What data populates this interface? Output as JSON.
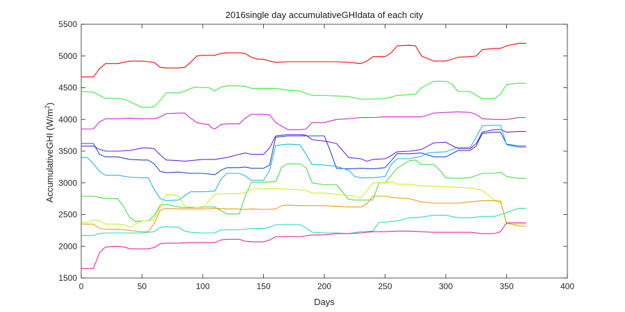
{
  "chart_data": {
    "type": "line",
    "title": "2016single day accumulativeGHIdata of each city",
    "xlabel": "Days",
    "ylabel": "AccumulativeGHI (W/m",
    "ylabel_superscript": "2",
    "ylabel_suffix": ")",
    "xlim": [
      0,
      400
    ],
    "ylim": [
      1500,
      5500
    ],
    "xticks": [
      0,
      50,
      100,
      150,
      200,
      250,
      300,
      350,
      400
    ],
    "yticks": [
      1500,
      2000,
      2500,
      3000,
      3500,
      4000,
      4500,
      5000,
      5500
    ],
    "grid": false,
    "legend": "none",
    "series": [
      {
        "color": "#ff0000",
        "x": [
          0,
          10,
          15,
          20,
          30,
          35,
          40,
          50,
          55,
          60,
          65,
          70,
          80,
          85,
          90,
          95,
          100,
          110,
          115,
          120,
          130,
          135,
          140,
          145,
          150,
          155,
          160,
          170,
          180,
          190,
          200,
          210,
          220,
          225,
          230,
          235,
          240,
          250,
          255,
          260,
          270,
          275,
          280,
          290,
          295,
          300,
          310,
          320,
          325,
          330,
          340,
          345,
          350,
          360,
          366
        ],
        "y": [
          4670,
          4670,
          4800,
          4880,
          4880,
          4900,
          4920,
          4920,
          4910,
          4900,
          4820,
          4810,
          4810,
          4820,
          4900,
          5000,
          5010,
          5010,
          5040,
          5050,
          5050,
          5040,
          4980,
          4950,
          4950,
          4920,
          4900,
          4910,
          4910,
          4910,
          4910,
          4910,
          4900,
          4890,
          4880,
          4920,
          4990,
          4990,
          5050,
          5160,
          5170,
          5160,
          5000,
          4920,
          4920,
          4920,
          4980,
          4990,
          5000,
          5100,
          5120,
          5120,
          5160,
          5200,
          5200
        ]
      },
      {
        "color": "#33ee33",
        "x": [
          0,
          10,
          15,
          20,
          30,
          35,
          40,
          50,
          55,
          60,
          65,
          70,
          80,
          85,
          90,
          95,
          100,
          105,
          110,
          115,
          120,
          130,
          135,
          140,
          150,
          160,
          170,
          180,
          185,
          190,
          200,
          210,
          220,
          225,
          230,
          240,
          250,
          255,
          260,
          270,
          275,
          280,
          290,
          295,
          300,
          305,
          310,
          320,
          325,
          330,
          340,
          345,
          350,
          360,
          366
        ],
        "y": [
          4440,
          4430,
          4380,
          4330,
          4330,
          4320,
          4280,
          4190,
          4190,
          4200,
          4300,
          4420,
          4420,
          4440,
          4490,
          4510,
          4500,
          4500,
          4450,
          4510,
          4530,
          4530,
          4520,
          4490,
          4490,
          4490,
          4460,
          4450,
          4410,
          4380,
          4380,
          4370,
          4360,
          4340,
          4320,
          4320,
          4330,
          4350,
          4380,
          4390,
          4400,
          4500,
          4600,
          4600,
          4600,
          4560,
          4440,
          4440,
          4380,
          4330,
          4330,
          4400,
          4550,
          4570,
          4570
        ]
      },
      {
        "color": "#cc22dd",
        "x": [
          0,
          10,
          15,
          20,
          30,
          40,
          50,
          55,
          60,
          65,
          70,
          80,
          85,
          90,
          95,
          100,
          105,
          107,
          110,
          115,
          120,
          130,
          135,
          140,
          150,
          155,
          160,
          170,
          180,
          185,
          190,
          200,
          210,
          220,
          230,
          240,
          250,
          260,
          270,
          280,
          290,
          300,
          310,
          320,
          325,
          330,
          340,
          350,
          360,
          366
        ],
        "y": [
          3850,
          3850,
          3960,
          4010,
          4010,
          4020,
          4010,
          4010,
          4010,
          4040,
          4090,
          4100,
          4100,
          4020,
          3950,
          3930,
          3920,
          3870,
          3850,
          3920,
          3930,
          3930,
          4020,
          4080,
          4080,
          4070,
          3950,
          3840,
          3840,
          3850,
          3950,
          3950,
          4000,
          4010,
          4030,
          4030,
          4040,
          4040,
          4040,
          4040,
          4100,
          4110,
          4120,
          4110,
          4080,
          4010,
          4000,
          4000,
          4030,
          4030
        ]
      },
      {
        "color": "#6622dd",
        "x": [
          0,
          10,
          15,
          20,
          30,
          40,
          50,
          55,
          60,
          65,
          70,
          80,
          85,
          90,
          100,
          110,
          120,
          130,
          135,
          140,
          150,
          155,
          160,
          170,
          180,
          185,
          190,
          200,
          210,
          220,
          230,
          235,
          240,
          250,
          255,
          260,
          270,
          275,
          280,
          290,
          300,
          310,
          320,
          325,
          330,
          340,
          345,
          350,
          360,
          366
        ],
        "y": [
          3580,
          3580,
          3530,
          3500,
          3500,
          3510,
          3550,
          3550,
          3540,
          3440,
          3360,
          3350,
          3340,
          3350,
          3370,
          3370,
          3400,
          3450,
          3470,
          3450,
          3450,
          3550,
          3740,
          3760,
          3760,
          3750,
          3680,
          3660,
          3620,
          3400,
          3380,
          3340,
          3370,
          3380,
          3430,
          3490,
          3500,
          3510,
          3530,
          3630,
          3640,
          3540,
          3540,
          3620,
          3800,
          3840,
          3840,
          3800,
          3810,
          3810
        ]
      },
      {
        "color": "#1f44cc",
        "x": [
          0,
          10,
          15,
          20,
          30,
          40,
          50,
          55,
          60,
          65,
          70,
          80,
          90,
          100,
          110,
          115,
          120,
          130,
          135,
          140,
          150,
          155,
          160,
          170,
          180,
          190,
          200,
          205,
          210,
          220,
          230,
          240,
          250,
          255,
          260,
          270,
          280,
          290,
          300,
          310,
          320,
          325,
          330,
          340,
          345,
          350,
          360,
          366
        ],
        "y": [
          3620,
          3620,
          3450,
          3410,
          3410,
          3370,
          3360,
          3360,
          3300,
          3180,
          3160,
          3170,
          3150,
          3150,
          3130,
          3200,
          3240,
          3240,
          3250,
          3230,
          3230,
          3280,
          3720,
          3740,
          3740,
          3740,
          3740,
          3500,
          3230,
          3220,
          3230,
          3220,
          3240,
          3350,
          3460,
          3460,
          3470,
          3410,
          3410,
          3510,
          3510,
          3580,
          3780,
          3800,
          3800,
          3610,
          3580,
          3580
        ]
      },
      {
        "color": "#11bbee",
        "x": [
          0,
          5,
          10,
          15,
          20,
          30,
          40,
          50,
          55,
          60,
          65,
          70,
          80,
          90,
          95,
          100,
          110,
          115,
          120,
          130,
          135,
          140,
          150,
          155,
          160,
          170,
          180,
          185,
          190,
          200,
          210,
          220,
          225,
          230,
          240,
          250,
          255,
          260,
          270,
          280,
          285,
          290,
          300,
          310,
          320,
          325,
          330,
          340,
          345,
          350,
          360,
          366
        ],
        "y": [
          3400,
          3400,
          3300,
          3180,
          3120,
          3120,
          3090,
          3080,
          3080,
          2900,
          2750,
          2720,
          2730,
          2860,
          2860,
          2860,
          2870,
          3060,
          3150,
          3150,
          3110,
          3040,
          3040,
          3200,
          3590,
          3610,
          3600,
          3450,
          3290,
          3280,
          3260,
          3200,
          3100,
          3080,
          3080,
          3100,
          3290,
          3380,
          3380,
          3420,
          3470,
          3480,
          3490,
          3560,
          3560,
          3720,
          3900,
          3910,
          3910,
          3600,
          3560,
          3560
        ]
      },
      {
        "color": "#44dd44",
        "x": [
          0,
          10,
          15,
          20,
          30,
          35,
          40,
          45,
          50,
          55,
          60,
          65,
          70,
          80,
          85,
          90,
          100,
          110,
          115,
          120,
          130,
          135,
          140,
          150,
          160,
          165,
          170,
          180,
          185,
          190,
          200,
          210,
          220,
          225,
          230,
          240,
          245,
          250,
          260,
          270,
          275,
          280,
          290,
          295,
          300,
          310,
          320,
          330,
          340,
          345,
          350,
          360,
          366
        ],
        "y": [
          2790,
          2790,
          2770,
          2750,
          2750,
          2620,
          2450,
          2390,
          2400,
          2400,
          2480,
          2650,
          2660,
          2620,
          2610,
          2610,
          2620,
          2620,
          2560,
          2510,
          2510,
          2800,
          3010,
          3010,
          3020,
          3250,
          3300,
          3300,
          3240,
          3000,
          2970,
          2970,
          2740,
          2730,
          2730,
          2730,
          3000,
          3000,
          3230,
          3350,
          3360,
          3290,
          3290,
          3200,
          3080,
          3070,
          3080,
          3150,
          3150,
          3170,
          3100,
          3070,
          3070
        ]
      },
      {
        "color": "#ccee22",
        "x": [
          0,
          5,
          10,
          15,
          20,
          30,
          35,
          40,
          50,
          55,
          60,
          65,
          70,
          80,
          85,
          90,
          100,
          110,
          120,
          130,
          135,
          140,
          150,
          160,
          170,
          180,
          185,
          190,
          200,
          210,
          220,
          225,
          230,
          240,
          250,
          255,
          260,
          270,
          280,
          290,
          300,
          310,
          320,
          330,
          340,
          345,
          350,
          360,
          366
        ],
        "y": [
          2380,
          2380,
          2420,
          2400,
          2350,
          2350,
          2340,
          2300,
          2400,
          2400,
          2420,
          2620,
          2820,
          2800,
          2640,
          2620,
          2610,
          2820,
          2830,
          2830,
          2850,
          2900,
          2910,
          2910,
          2900,
          2890,
          2880,
          2840,
          2840,
          2820,
          2800,
          2790,
          2760,
          3000,
          3000,
          3020,
          2980,
          2980,
          2950,
          2950,
          2940,
          2930,
          2920,
          2880,
          2730,
          2720,
          2350,
          2350,
          2350
        ]
      },
      {
        "color": "#ee9911",
        "x": [
          0,
          10,
          15,
          20,
          30,
          35,
          40,
          50,
          55,
          60,
          65,
          70,
          80,
          90,
          100,
          110,
          120,
          130,
          135,
          140,
          150,
          160,
          165,
          170,
          180,
          190,
          200,
          210,
          220,
          230,
          235,
          240,
          250,
          260,
          270,
          280,
          290,
          300,
          310,
          320,
          330,
          340,
          345,
          350,
          360,
          366
        ],
        "y": [
          2350,
          2350,
          2280,
          2270,
          2270,
          2260,
          2250,
          2230,
          2230,
          2360,
          2570,
          2600,
          2590,
          2590,
          2590,
          2600,
          2590,
          2590,
          2580,
          2590,
          2580,
          2590,
          2640,
          2650,
          2640,
          2640,
          2640,
          2630,
          2620,
          2620,
          2670,
          2790,
          2790,
          2760,
          2750,
          2700,
          2680,
          2680,
          2680,
          2700,
          2720,
          2720,
          2700,
          2370,
          2320,
          2320
        ]
      },
      {
        "color": "#22ddbb",
        "x": [
          0,
          10,
          15,
          20,
          30,
          40,
          50,
          60,
          65,
          70,
          80,
          85,
          90,
          100,
          110,
          115,
          120,
          130,
          140,
          150,
          155,
          160,
          170,
          180,
          185,
          190,
          200,
          210,
          220,
          230,
          240,
          245,
          250,
          260,
          270,
          280,
          290,
          300,
          310,
          320,
          330,
          340,
          345,
          350,
          360,
          366
        ],
        "y": [
          2170,
          2170,
          2200,
          2210,
          2210,
          2210,
          2210,
          2230,
          2300,
          2310,
          2300,
          2240,
          2220,
          2210,
          2210,
          2260,
          2260,
          2260,
          2280,
          2280,
          2300,
          2340,
          2340,
          2340,
          2290,
          2220,
          2210,
          2210,
          2200,
          2230,
          2240,
          2380,
          2380,
          2400,
          2450,
          2460,
          2490,
          2490,
          2450,
          2450,
          2470,
          2470,
          2500,
          2530,
          2600,
          2600
        ]
      },
      {
        "color": "#ee2299",
        "x": [
          0,
          10,
          15,
          20,
          30,
          35,
          40,
          50,
          55,
          60,
          65,
          70,
          80,
          90,
          100,
          110,
          115,
          120,
          130,
          135,
          140,
          150,
          155,
          160,
          170,
          180,
          190,
          200,
          210,
          220,
          230,
          240,
          250,
          260,
          270,
          280,
          290,
          300,
          310,
          320,
          330,
          340,
          345,
          350,
          360,
          366
        ],
        "y": [
          1650,
          1650,
          1900,
          1990,
          2000,
          1990,
          1960,
          1960,
          1960,
          1980,
          2040,
          2050,
          2050,
          2060,
          2060,
          2060,
          2100,
          2110,
          2110,
          2080,
          2070,
          2070,
          2100,
          2150,
          2150,
          2150,
          2180,
          2180,
          2200,
          2200,
          2210,
          2230,
          2230,
          2240,
          2240,
          2230,
          2220,
          2220,
          2220,
          2220,
          2200,
          2200,
          2230,
          2370,
          2370,
          2370
        ]
      }
    ]
  }
}
